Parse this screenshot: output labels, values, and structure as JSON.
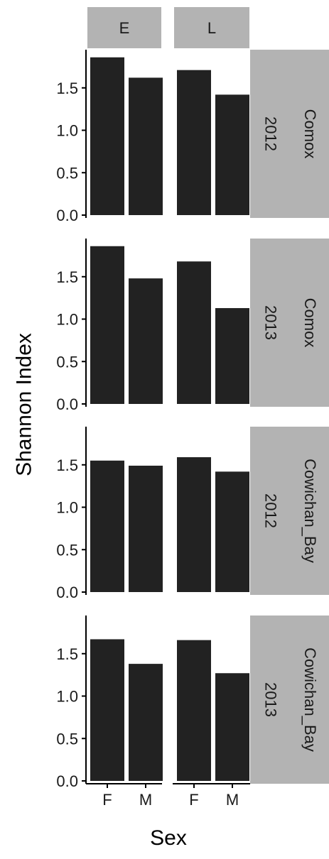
{
  "chart_data": {
    "type": "bar",
    "xlabel": "Sex",
    "ylabel": "Shannon Index",
    "ylim": [
      0,
      1.95
    ],
    "yticks": [
      0.0,
      0.5,
      1.0,
      1.5
    ],
    "ytick_labels": [
      "0.0",
      "0.5",
      "1.0",
      "1.5"
    ],
    "categories": [
      "F",
      "M"
    ],
    "facet_columns": [
      "E",
      "L"
    ],
    "facet_rows": [
      {
        "location": "Comox",
        "year": "2012"
      },
      {
        "location": "Comox",
        "year": "2013"
      },
      {
        "location": "Cowichan_Bay",
        "year": "2012"
      },
      {
        "location": "Cowichan_Bay",
        "year": "2013"
      }
    ],
    "panels": [
      {
        "row": 0,
        "col": 0,
        "values": [
          1.86,
          1.62
        ]
      },
      {
        "row": 0,
        "col": 1,
        "values": [
          1.71,
          1.42
        ]
      },
      {
        "row": 1,
        "col": 0,
        "values": [
          1.86,
          1.48
        ]
      },
      {
        "row": 1,
        "col": 1,
        "values": [
          1.68,
          1.13
        ]
      },
      {
        "row": 2,
        "col": 0,
        "values": [
          1.55,
          1.49
        ]
      },
      {
        "row": 2,
        "col": 1,
        "values": [
          1.59,
          1.42
        ]
      },
      {
        "row": 3,
        "col": 0,
        "values": [
          1.67,
          1.38
        ]
      },
      {
        "row": 3,
        "col": 1,
        "values": [
          1.66,
          1.27
        ]
      }
    ],
    "bar_color": "#222222",
    "strip_color": "#b3b3b3",
    "axis_color": "#000000",
    "grid": false,
    "legend": "none"
  }
}
